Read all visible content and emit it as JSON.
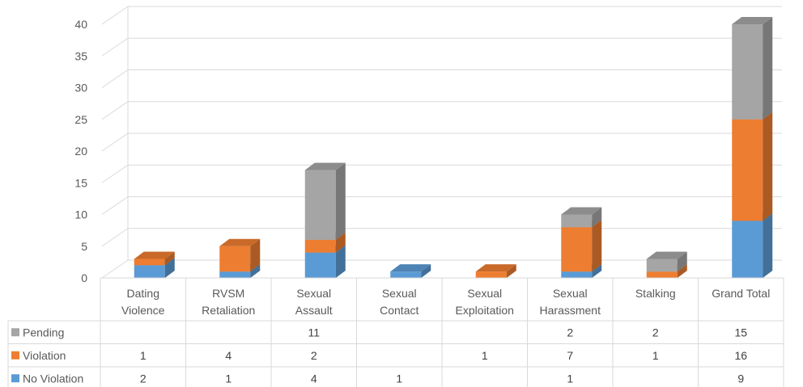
{
  "chart_data": {
    "type": "bar",
    "stacked": true,
    "three_d": true,
    "title": "",
    "xlabel": "",
    "ylabel": "",
    "ylim": [
      0,
      40
    ],
    "yticks": [
      0,
      5,
      10,
      15,
      20,
      25,
      30,
      35,
      40
    ],
    "grid": true,
    "legend": "data-table-left",
    "categories": [
      [
        "Dating",
        "Violence"
      ],
      [
        "RVSM",
        "Retaliation"
      ],
      [
        "Sexual",
        "Assault"
      ],
      [
        "Sexual",
        "Contact"
      ],
      [
        "Sexual",
        "Exploitation"
      ],
      [
        "Sexual",
        "Harassment"
      ],
      [
        "Stalking"
      ],
      [
        "Grand Total"
      ]
    ],
    "series": [
      {
        "name": "No Violation",
        "color": "#5b9bd5",
        "values": [
          2,
          1,
          4,
          1,
          null,
          1,
          null,
          9
        ]
      },
      {
        "name": "Violation",
        "color": "#ed7d31",
        "values": [
          1,
          4,
          2,
          null,
          1,
          7,
          1,
          16
        ]
      },
      {
        "name": "Pending",
        "color": "#a5a5a5",
        "values": [
          null,
          null,
          11,
          null,
          null,
          2,
          2,
          15
        ]
      }
    ]
  }
}
